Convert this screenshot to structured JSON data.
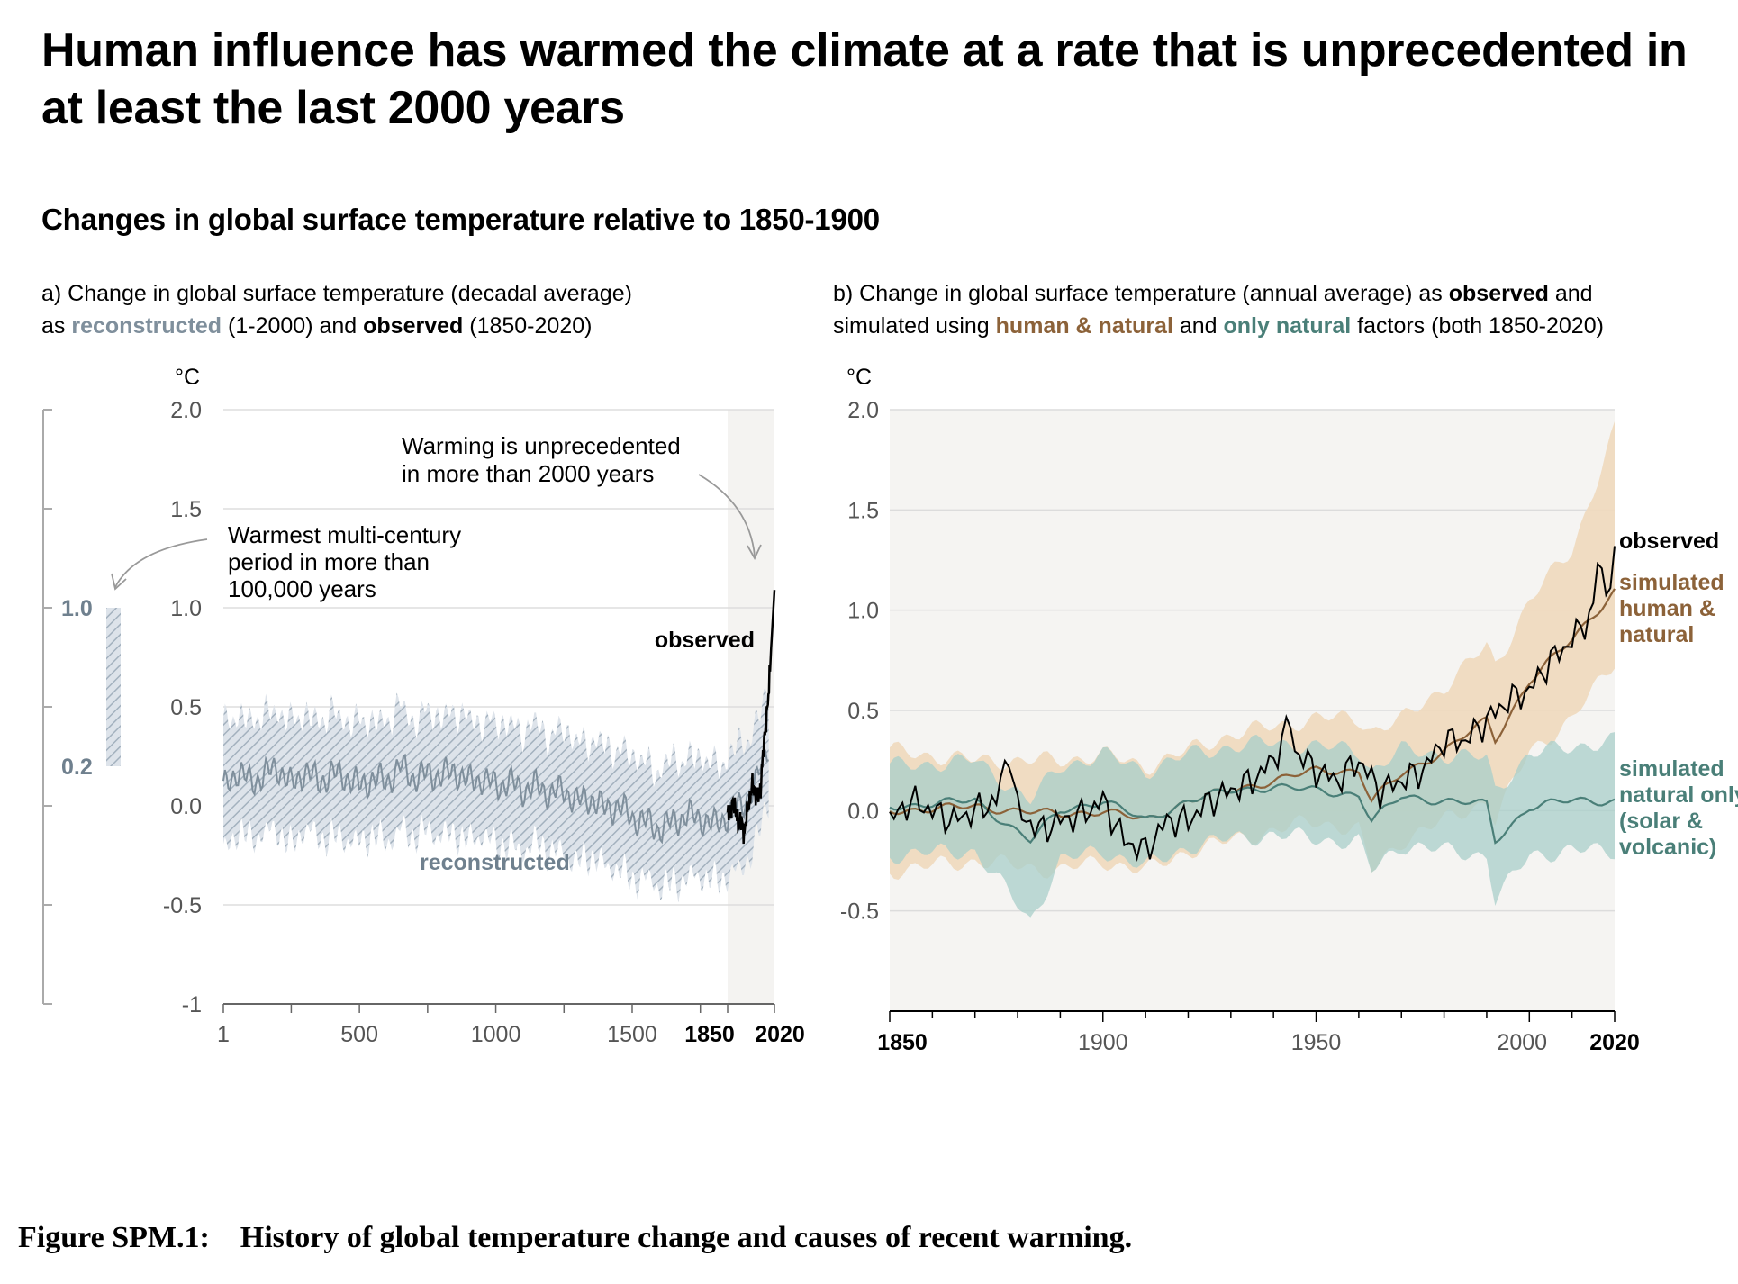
{
  "headline": "Human influence has warmed the climate at a rate that is unprecedented in at least the last 2000 years",
  "subheadline": "Changes in global surface temperature relative to 1850-1900",
  "panel_a": {
    "title_line1": "a) Change in global surface temperature (decadal average)",
    "title_l2_pre": "as ",
    "title_l2_reconstructed": "reconstructed",
    "title_l2_mid": " (1-2000) and ",
    "title_l2_observed": "observed",
    "title_l2_post": " (1850-2020)"
  },
  "panel_b": {
    "title_l1_pre": "b) Change in global surface temperature (annual average) as ",
    "title_l1_observed": "observed",
    "title_l1_post": " and",
    "title_l2_pre": "simulated using ",
    "title_l2_human": "human & natural",
    "title_l2_mid": " and ",
    "title_l2_natural": "only natural",
    "title_l2_post": " factors (both 1850-2020)"
  },
  "caption": "Figure SPM.1:    History of global temperature change and causes of recent warming.",
  "colors": {
    "reconstructed": "#7f8f9c",
    "reconstructed_band": "#b9c5d0",
    "observed": "#000000",
    "human_natural": "#8c6239",
    "human_natural_band": "#f0d9bd",
    "natural": "#4a7f78",
    "natural_band": "#a8cfc9",
    "panel_b_bg": "#f5f4f2",
    "axis": "#888888"
  },
  "chart_data": [
    {
      "type": "line",
      "panel": "a",
      "unit_label": "°C",
      "ylim": [
        -1,
        2
      ],
      "yticks": [
        "2.0",
        "1.5",
        "1.0",
        "0.5",
        "0.0",
        "-0.5",
        "-1"
      ],
      "xlim": [
        1,
        2020
      ],
      "xticks": [
        "1",
        "500",
        "1000",
        "1500",
        "1850",
        "2020"
      ],
      "annotations": {
        "warming": "Warming is unprecedented\nin more than 2000 years",
        "warmest": "Warmest multi-century\nperiod in more than\n100,000 years",
        "observed_label": "observed",
        "reconstructed_label": "reconstructed"
      },
      "side_bar": {
        "label_high": "1.0",
        "label_low": "0.2",
        "range": [
          0.2,
          1.0
        ]
      },
      "series": [
        {
          "name": "reconstructed",
          "x_range": [
            1,
            2000
          ],
          "band_half_width": 0.3,
          "x": [
            1,
            50,
            100,
            150,
            200,
            250,
            300,
            350,
            400,
            450,
            500,
            550,
            600,
            650,
            700,
            750,
            800,
            850,
            900,
            950,
            1000,
            1050,
            1100,
            1150,
            1200,
            1250,
            1300,
            1350,
            1400,
            1450,
            1500,
            1550,
            1600,
            1650,
            1700,
            1750,
            1800,
            1850,
            1900,
            1950,
            2000
          ],
          "values": [
            0.08,
            0.18,
            0.12,
            0.15,
            0.2,
            0.1,
            0.18,
            0.12,
            0.16,
            0.15,
            0.1,
            0.14,
            0.12,
            0.2,
            0.14,
            0.16,
            0.15,
            0.18,
            0.12,
            0.14,
            0.1,
            0.12,
            0.08,
            0.1,
            0.06,
            0.08,
            0.02,
            0.04,
            -0.02,
            0.0,
            -0.06,
            -0.08,
            -0.12,
            -0.08,
            -0.05,
            -0.06,
            -0.1,
            -0.05,
            0.0,
            0.1,
            0.32
          ]
        },
        {
          "name": "observed",
          "x": [
            1850,
            1860,
            1870,
            1880,
            1890,
            1900,
            1910,
            1920,
            1930,
            1940,
            1950,
            1960,
            1970,
            1980,
            1990,
            2000,
            2010,
            2020
          ],
          "values": [
            -0.02,
            -0.04,
            0.02,
            -0.03,
            -0.1,
            -0.06,
            -0.15,
            -0.03,
            0.02,
            0.12,
            0.05,
            0.05,
            0.08,
            0.3,
            0.42,
            0.6,
            0.85,
            1.09
          ]
        }
      ]
    },
    {
      "type": "line",
      "panel": "b",
      "unit_label": "°C",
      "ylim": [
        -1,
        2
      ],
      "yticks": [
        "2.0",
        "1.5",
        "1.0",
        "0.5",
        "0.0",
        "-0.5"
      ],
      "xlim": [
        1850,
        2020
      ],
      "xticks": [
        "1850",
        "1900",
        "1950",
        "2000",
        "2020"
      ],
      "series": [
        {
          "name": "observed",
          "x": [
            1850,
            1855,
            1860,
            1865,
            1870,
            1875,
            1878,
            1880,
            1885,
            1890,
            1895,
            1900,
            1905,
            1910,
            1915,
            1920,
            1925,
            1930,
            1935,
            1940,
            1944,
            1945,
            1950,
            1955,
            1960,
            1965,
            1970,
            1975,
            1980,
            1985,
            1990,
            1995,
            2000,
            2005,
            2010,
            2015,
            2016,
            2018,
            2020
          ],
          "values": [
            -0.05,
            0.05,
            0.0,
            -0.05,
            0.0,
            0.05,
            0.3,
            0.0,
            -0.1,
            -0.05,
            -0.02,
            0.05,
            -0.15,
            -0.2,
            -0.05,
            -0.05,
            0.05,
            0.1,
            0.15,
            0.25,
            0.45,
            0.3,
            0.2,
            0.15,
            0.25,
            0.1,
            0.15,
            0.2,
            0.35,
            0.35,
            0.45,
            0.55,
            0.6,
            0.75,
            0.85,
            1.0,
            1.25,
            1.1,
            1.25
          ]
        },
        {
          "name": "simulated human & natural",
          "x": [
            1850,
            1870,
            1890,
            1900,
            1910,
            1920,
            1930,
            1940,
            1950,
            1960,
            1963,
            1970,
            1980,
            1990,
            1992,
            2000,
            2010,
            2020
          ],
          "values": [
            0.0,
            0.02,
            -0.02,
            0.0,
            -0.05,
            0.05,
            0.1,
            0.15,
            0.2,
            0.2,
            0.05,
            0.18,
            0.3,
            0.45,
            0.35,
            0.65,
            0.85,
            1.1
          ],
          "band_low": [
            -0.3,
            -0.25,
            -0.3,
            -0.25,
            -0.3,
            -0.2,
            -0.15,
            -0.1,
            -0.05,
            -0.1,
            -0.3,
            -0.15,
            -0.05,
            0.05,
            -0.05,
            0.3,
            0.45,
            0.75
          ],
          "band_high": [
            0.3,
            0.25,
            0.25,
            0.28,
            0.22,
            0.3,
            0.38,
            0.42,
            0.46,
            0.46,
            0.4,
            0.45,
            0.62,
            0.82,
            0.72,
            1.05,
            1.3,
            1.9
          ]
        },
        {
          "name": "simulated natural only (solar & volcanic)",
          "x": [
            1850,
            1870,
            1883,
            1890,
            1900,
            1910,
            1920,
            1930,
            1940,
            1950,
            1960,
            1963,
            1970,
            1980,
            1990,
            1992,
            2000,
            2010,
            2020
          ],
          "values": [
            0.02,
            0.05,
            -0.15,
            0.0,
            0.05,
            -0.05,
            0.05,
            0.1,
            0.12,
            0.1,
            0.08,
            -0.05,
            0.07,
            0.05,
            0.03,
            -0.15,
            0.02,
            0.05,
            0.05
          ],
          "band_low": [
            -0.22,
            -0.2,
            -0.55,
            -0.25,
            -0.2,
            -0.28,
            -0.18,
            -0.14,
            -0.12,
            -0.14,
            -0.16,
            -0.3,
            -0.17,
            -0.2,
            -0.22,
            -0.45,
            -0.22,
            -0.2,
            -0.2
          ],
          "band_high": [
            0.22,
            0.25,
            0.05,
            0.22,
            0.28,
            0.2,
            0.28,
            0.32,
            0.34,
            0.32,
            0.3,
            0.2,
            0.3,
            0.28,
            0.26,
            0.1,
            0.28,
            0.32,
            0.35
          ]
        }
      ],
      "labels": {
        "observed": "observed",
        "human": "simulated\nhuman &\nnatural",
        "natural": "simulated\nnatural only\n(solar &\nvolcanic)"
      }
    }
  ]
}
